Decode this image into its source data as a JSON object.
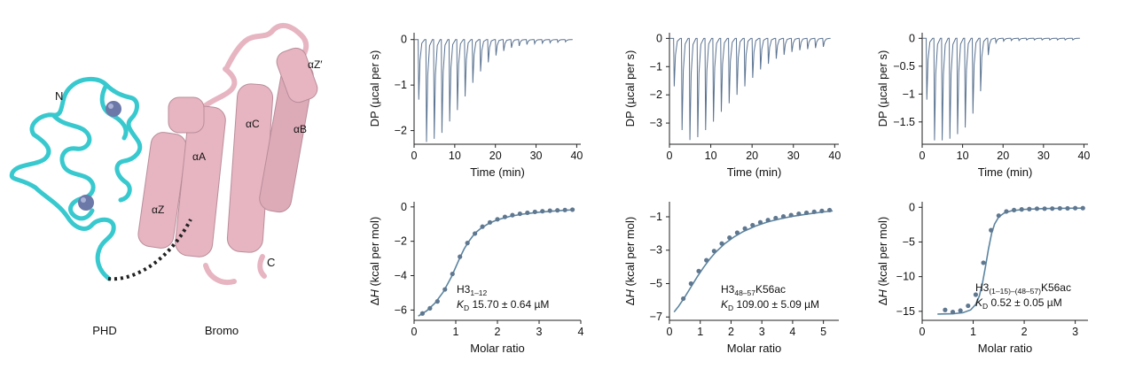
{
  "structure": {
    "panel_labels": {
      "left": "PHD",
      "right": "Bromo"
    },
    "residue_labels": [
      "N",
      "C",
      "αA",
      "αB",
      "αC",
      "αZ",
      "αZ′"
    ],
    "colors": {
      "phd": "#38c9cf",
      "bromo": "#e7b5c2",
      "zinc": "#6b78a8",
      "linker": "#222222"
    }
  },
  "colors": {
    "trace": "#5b7391",
    "fit": "#5b84a0",
    "points": "#5f7890"
  },
  "chart_data": [
    {
      "type": "line",
      "panel": "top-1",
      "xlabel": "Time (min)",
      "ylabel": "DP (µcal per s)",
      "xlim": [
        0,
        41
      ],
      "ylim": [
        -2.3,
        0.15
      ],
      "xticks": [
        0,
        10,
        20,
        30,
        40
      ],
      "yticks": [
        0,
        -1,
        -2
      ],
      "injection_times": [
        1.0,
        2.9,
        4.8,
        6.7,
        8.6,
        10.5,
        12.4,
        14.3,
        16.2,
        18.1,
        20.0,
        21.9,
        23.8,
        25.7,
        27.6,
        29.5,
        31.4,
        33.3,
        35.2,
        37.1
      ],
      "peak_minima": [
        -1.32,
        -2.25,
        -2.18,
        -2.05,
        -1.8,
        -1.55,
        -1.25,
        -0.95,
        -0.7,
        -0.5,
        -0.35,
        -0.25,
        -0.18,
        -0.14,
        -0.11,
        -0.09,
        -0.08,
        -0.07,
        -0.06,
        -0.05
      ]
    },
    {
      "type": "line",
      "panel": "top-2",
      "xlabel": "Time (min)",
      "ylabel": "DP (µcal per s)",
      "xlim": [
        0,
        41
      ],
      "ylim": [
        -3.75,
        0.2
      ],
      "xticks": [
        0,
        10,
        20,
        30,
        40
      ],
      "yticks": [
        0,
        -1,
        -2,
        -3
      ],
      "injection_times": [
        1.0,
        2.9,
        4.8,
        6.7,
        8.6,
        10.5,
        12.4,
        14.3,
        16.2,
        18.1,
        20.0,
        21.9,
        23.8,
        25.7,
        27.6,
        29.5,
        31.4,
        33.3,
        35.2,
        37.1
      ],
      "peak_minima": [
        -1.7,
        -3.25,
        -3.6,
        -3.5,
        -3.25,
        -2.95,
        -2.6,
        -2.3,
        -2.0,
        -1.7,
        -1.4,
        -1.1,
        -0.9,
        -0.72,
        -0.58,
        -0.48,
        -0.42,
        -0.38,
        -0.34,
        -0.3
      ]
    },
    {
      "type": "line",
      "panel": "top-3",
      "xlabel": "Time (min)",
      "ylabel": "DP (µcal per s)",
      "xlim": [
        0,
        41
      ],
      "ylim": [
        -1.9,
        0.1
      ],
      "xticks": [
        0,
        10,
        20,
        30,
        40
      ],
      "yticks": [
        0,
        -0.5,
        -1,
        -1.5
      ],
      "injection_times": [
        1.0,
        2.9,
        4.8,
        6.7,
        8.6,
        10.5,
        12.4,
        14.3,
        16.2,
        18.1,
        20.0,
        21.9,
        23.8,
        25.7,
        27.6,
        29.5,
        31.4,
        33.3,
        35.2,
        37.1
      ],
      "peak_minima": [
        -1.1,
        -1.83,
        -1.83,
        -1.8,
        -1.72,
        -1.6,
        -1.35,
        -0.95,
        -0.3,
        -0.08,
        -0.05,
        -0.04,
        -0.04,
        -0.03,
        -0.03,
        -0.03,
        -0.03,
        -0.03,
        -0.03,
        -0.03
      ]
    },
    {
      "type": "scatter",
      "panel": "bottom-1",
      "xlabel": "Molar ratio",
      "ylabel": "ΔH (kcal per mol)",
      "xlim": [
        0,
        4
      ],
      "ylim": [
        -6.6,
        0.3
      ],
      "xticks": [
        0,
        1,
        2,
        3,
        4
      ],
      "yticks": [
        0,
        -2,
        -4,
        -6
      ],
      "x": [
        0.2,
        0.38,
        0.56,
        0.74,
        0.92,
        1.1,
        1.28,
        1.46,
        1.64,
        1.82,
        2.0,
        2.18,
        2.36,
        2.54,
        2.72,
        2.9,
        3.08,
        3.26,
        3.44,
        3.62,
        3.8
      ],
      "y": [
        -6.2,
        -5.9,
        -5.5,
        -4.8,
        -3.9,
        -2.9,
        -2.1,
        -1.55,
        -1.15,
        -0.9,
        -0.72,
        -0.58,
        -0.48,
        -0.4,
        -0.34,
        -0.29,
        -0.25,
        -0.22,
        -0.2,
        -0.18,
        -0.16
      ],
      "fit_x": [
        0.1,
        0.3,
        0.5,
        0.7,
        0.9,
        1.0,
        1.1,
        1.2,
        1.3,
        1.4,
        1.5,
        1.6,
        1.8,
        2.0,
        2.3,
        2.6,
        3.0,
        3.4,
        3.8
      ],
      "fit_y": [
        -6.35,
        -6.05,
        -5.6,
        -4.95,
        -4.05,
        -3.5,
        -2.95,
        -2.45,
        -2.05,
        -1.72,
        -1.45,
        -1.25,
        -0.95,
        -0.75,
        -0.55,
        -0.42,
        -0.31,
        -0.23,
        -0.17
      ],
      "annotation": {
        "ligand": "H3",
        "ligand_sub": "1–12",
        "kd_label": "K",
        "kd_sub": "D",
        "kd_value": "15.70 ± 0.64 µM"
      }
    },
    {
      "type": "scatter",
      "panel": "bottom-2",
      "xlabel": "Molar ratio",
      "ylabel": "ΔH (kcal per mol)",
      "xlim": [
        0,
        5.5
      ],
      "ylim": [
        -7.2,
        -0.1
      ],
      "xticks": [
        0,
        1,
        2,
        3,
        4,
        5
      ],
      "yticks": [
        -1,
        -3,
        -5,
        -7
      ],
      "x": [
        0.45,
        0.7,
        0.95,
        1.2,
        1.45,
        1.7,
        1.95,
        2.2,
        2.45,
        2.7,
        2.95,
        3.2,
        3.45,
        3.7,
        3.95,
        4.2,
        4.45,
        4.7,
        4.95,
        5.2
      ],
      "y": [
        -5.9,
        -5.0,
        -4.25,
        -3.6,
        -3.05,
        -2.6,
        -2.25,
        -1.95,
        -1.7,
        -1.5,
        -1.33,
        -1.2,
        -1.08,
        -0.98,
        -0.9,
        -0.82,
        -0.76,
        -0.7,
        -0.65,
        -0.6
      ],
      "fit_x": [
        0.15,
        0.3,
        0.5,
        0.7,
        0.9,
        1.1,
        1.3,
        1.5,
        1.8,
        2.1,
        2.4,
        2.8,
        3.2,
        3.6,
        4.0,
        4.5,
        5.0,
        5.3
      ],
      "fit_y": [
        -6.7,
        -6.35,
        -5.8,
        -5.2,
        -4.6,
        -4.05,
        -3.55,
        -3.12,
        -2.6,
        -2.2,
        -1.88,
        -1.55,
        -1.3,
        -1.12,
        -0.97,
        -0.83,
        -0.71,
        -0.65
      ],
      "annotation": {
        "ligand": "H3",
        "ligand_sub": "48–57",
        "ligand_suffix": "K56ac",
        "kd_label": "K",
        "kd_sub": "D",
        "kd_value": "109.00 ± 5.09 µM"
      }
    },
    {
      "type": "scatter",
      "panel": "bottom-3",
      "xlabel": "Molar ratio",
      "ylabel": "ΔH (kcal per mol)",
      "xlim": [
        0,
        3.25
      ],
      "ylim": [
        -16.3,
        0.8
      ],
      "xticks": [
        0,
        1,
        2,
        3
      ],
      "yticks": [
        0,
        -5,
        -10,
        -15
      ],
      "x": [
        0.45,
        0.6,
        0.75,
        0.9,
        1.05,
        1.2,
        1.35,
        1.5,
        1.65,
        1.8,
        1.95,
        2.1,
        2.25,
        2.4,
        2.55,
        2.7,
        2.85,
        3.0,
        3.15
      ],
      "y": [
        -14.8,
        -15.1,
        -14.9,
        -14.2,
        -12.6,
        -8.0,
        -3.3,
        -1.2,
        -0.6,
        -0.4,
        -0.3,
        -0.25,
        -0.2,
        -0.2,
        -0.18,
        -0.15,
        -0.15,
        -0.12,
        -0.12
      ],
      "fit_x": [
        0.3,
        0.6,
        0.8,
        0.95,
        1.05,
        1.12,
        1.18,
        1.24,
        1.3,
        1.36,
        1.42,
        1.5,
        1.6,
        1.75,
        2.0,
        2.4,
        2.8,
        3.15
      ],
      "fit_y": [
        -15.4,
        -15.35,
        -15.2,
        -14.8,
        -14.0,
        -12.8,
        -11.0,
        -8.6,
        -6.0,
        -3.8,
        -2.4,
        -1.4,
        -0.85,
        -0.5,
        -0.3,
        -0.18,
        -0.14,
        -0.12
      ],
      "annotation": {
        "ligand": "H3",
        "ligand_sub": "(1–15)–(48–57)",
        "ligand_suffix": "K56ac",
        "kd_label": "K",
        "kd_sub": "D",
        "kd_value": "0.52 ± 0.05 µM"
      }
    }
  ]
}
